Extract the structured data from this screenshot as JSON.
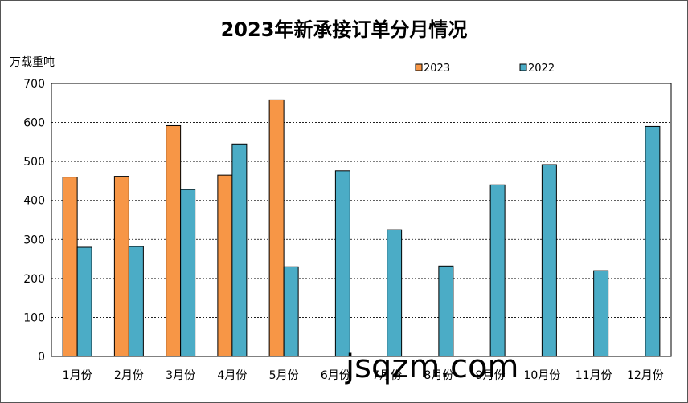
{
  "chart_data": {
    "type": "bar",
    "title": "2023年新承接订单分月情况",
    "ylabel": "万载重吨",
    "xlabel": "",
    "ylim": [
      0,
      700
    ],
    "yticks": [
      0,
      100,
      200,
      300,
      400,
      500,
      600,
      700
    ],
    "grid": true,
    "legend_position": "top-right",
    "categories": [
      "1月份",
      "2月份",
      "3月份",
      "4月份",
      "5月份",
      "6月份",
      "7月份",
      "8月份",
      "9月份",
      "10月份",
      "11月份",
      "12月份"
    ],
    "series": [
      {
        "name": "2023",
        "color": "#F79646",
        "values": [
          460,
          462,
          592,
          465,
          658,
          null,
          null,
          null,
          null,
          null,
          null,
          null
        ]
      },
      {
        "name": "2022",
        "color": "#4BACC6",
        "values": [
          280,
          282,
          428,
          545,
          230,
          476,
          325,
          232,
          440,
          492,
          220,
          590
        ]
      }
    ]
  },
  "watermark": "jsqzm.com"
}
